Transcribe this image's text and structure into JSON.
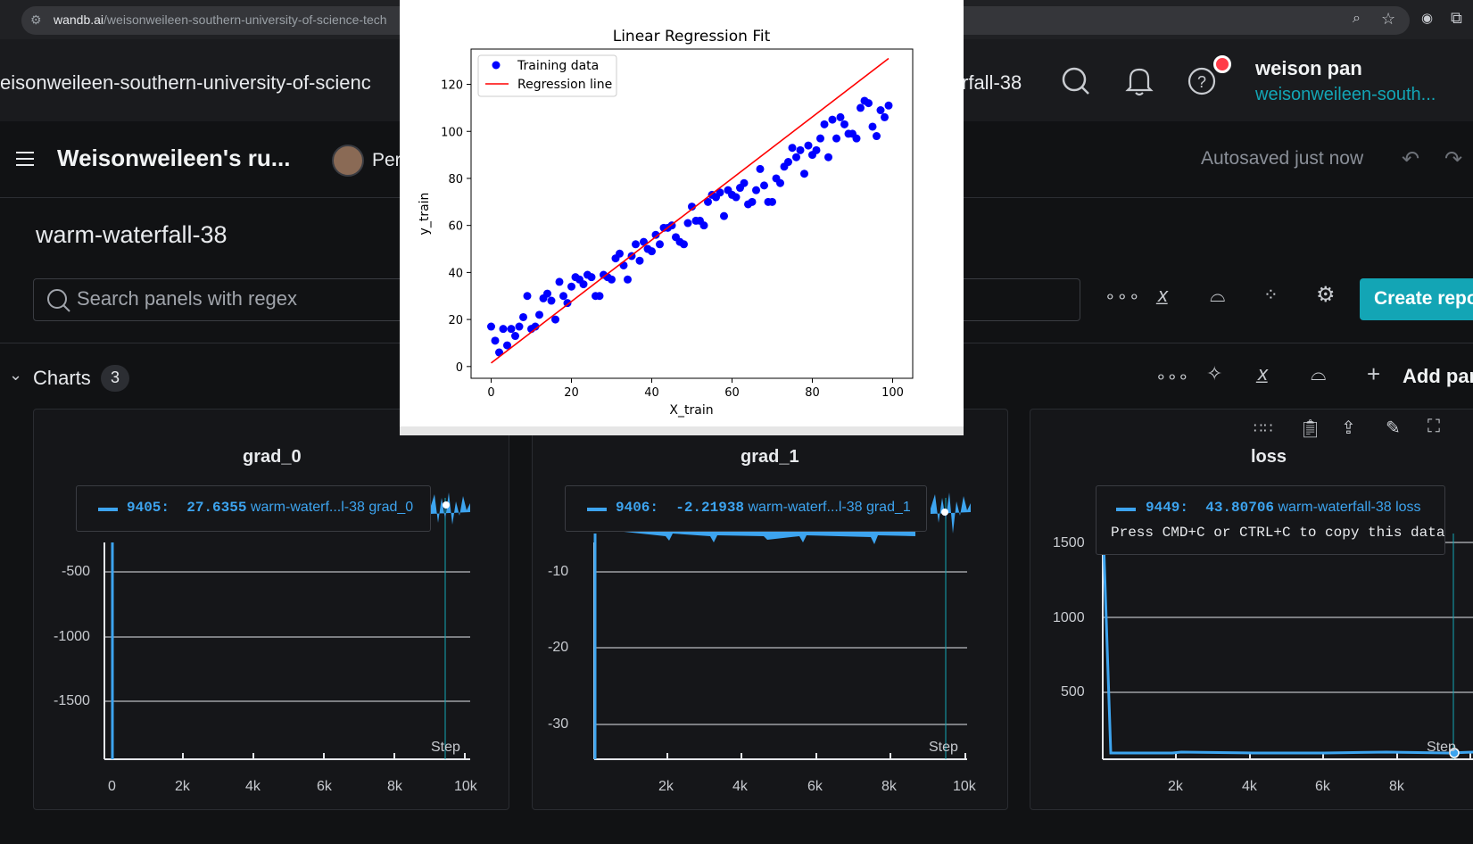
{
  "browser": {
    "url_domain": "wandb.ai",
    "url_path": "/weisonweileen-southern-university-of-science-tech"
  },
  "topnav": {
    "workspace": "eisonweileen-southern-university-of-scienc",
    "run_partial": "rfall-38",
    "user_name": "weison pan",
    "user_team": "weisonweileen-south..."
  },
  "header": {
    "report_title": "Weisonweileen's ru...",
    "author_partial": "Per",
    "autosave": "Autosaved just now"
  },
  "run": {
    "title": "warm-waterfall-38"
  },
  "search": {
    "placeholder": "Search panels with regex"
  },
  "toolbar": {
    "create_report": "Create repo"
  },
  "section": {
    "label": "Charts",
    "count": "3",
    "add_panel": "Add par"
  },
  "panels": [
    {
      "title": "grad_0",
      "tooltip": {
        "step": "9405",
        "value": "27.6355",
        "name": "warm-waterf...l-38 grad_0"
      },
      "yticks": [
        "-500",
        "-1000",
        "-1500"
      ],
      "xticks": [
        "0",
        "2k",
        "4k",
        "6k",
        "8k",
        "10k"
      ],
      "step_label": "Step"
    },
    {
      "title": "grad_1",
      "tooltip": {
        "step": "9406",
        "value": "-2.21938",
        "name": "warm-waterf...l-38 grad_1"
      },
      "yticks": [
        "-10",
        "-20",
        "-30"
      ],
      "xticks": [
        "2k",
        "4k",
        "6k",
        "8k",
        "10k"
      ],
      "step_label": "Step"
    },
    {
      "title": "loss",
      "tooltip": {
        "step": "9449",
        "value": "43.80706",
        "name": "warm-waterfall-38 loss",
        "hint": "Press CMD+C or CTRL+C to copy this data"
      },
      "yticks": [
        "1500",
        "1000",
        "500"
      ],
      "xticks": [
        "2k",
        "4k",
        "6k",
        "8k"
      ],
      "step_label": "Step"
    }
  ],
  "colors": {
    "accent": "#13a5b5",
    "line": "#3da4ef",
    "bg": "#111214"
  },
  "chart_data": {
    "type": "scatter",
    "title": "Linear Regression Fit",
    "xlabel": "X_train",
    "ylabel": "y_train",
    "xlim": [
      -5,
      105
    ],
    "ylim": [
      -5,
      135
    ],
    "xticks": [
      0,
      20,
      40,
      60,
      80,
      100
    ],
    "yticks": [
      0,
      20,
      40,
      60,
      80,
      100,
      120
    ],
    "legend_position": "top-left",
    "series": [
      {
        "name": "Training data",
        "kind": "scatter",
        "color": "#0000ff",
        "x": [
          0,
          1,
          2,
          3,
          4,
          5,
          6,
          7,
          8,
          9,
          10,
          11,
          12,
          13,
          14,
          15,
          16,
          17,
          18,
          19,
          20,
          21,
          22,
          23,
          24,
          25,
          26,
          27,
          28,
          29,
          30,
          31,
          32,
          33,
          34,
          35,
          36,
          37,
          38,
          39,
          40,
          41,
          42,
          43,
          44,
          45,
          46,
          47,
          48,
          49,
          50,
          51,
          52,
          53,
          54,
          55,
          56,
          57,
          58,
          59,
          60,
          61,
          62,
          63,
          64,
          65,
          66,
          67,
          68,
          69,
          70,
          71,
          72,
          73,
          74,
          75,
          76,
          77,
          78,
          79,
          80,
          81,
          82,
          83,
          84,
          85,
          86,
          87,
          88,
          89,
          90,
          91,
          92,
          93,
          94,
          95,
          96,
          97,
          98,
          99
        ],
        "y": [
          17,
          11,
          6,
          16,
          9,
          16,
          13,
          17,
          21,
          30,
          16,
          17,
          22,
          29,
          31,
          28,
          20,
          36,
          30,
          27,
          34,
          38,
          37,
          35,
          39,
          38,
          30,
          30,
          39,
          38,
          37,
          46,
          48,
          43,
          37,
          47,
          52,
          45,
          53,
          50,
          49,
          56,
          52,
          59,
          59,
          60,
          55,
          53,
          52,
          61,
          68,
          62,
          62,
          60,
          70,
          73,
          72,
          74,
          64,
          75,
          73,
          72,
          76,
          78,
          69,
          70,
          75,
          84,
          77,
          70,
          70,
          80,
          78,
          85,
          87,
          93,
          89,
          92,
          82,
          94,
          90,
          92,
          97,
          103,
          89,
          105,
          97,
          106,
          103,
          99,
          99,
          97,
          110,
          113,
          112,
          102,
          98,
          109,
          106,
          111
        ]
      },
      {
        "name": "Regression line",
        "kind": "line",
        "color": "#ff0000",
        "x": [
          0,
          99
        ],
        "y": [
          1.5,
          131
        ]
      }
    ]
  }
}
